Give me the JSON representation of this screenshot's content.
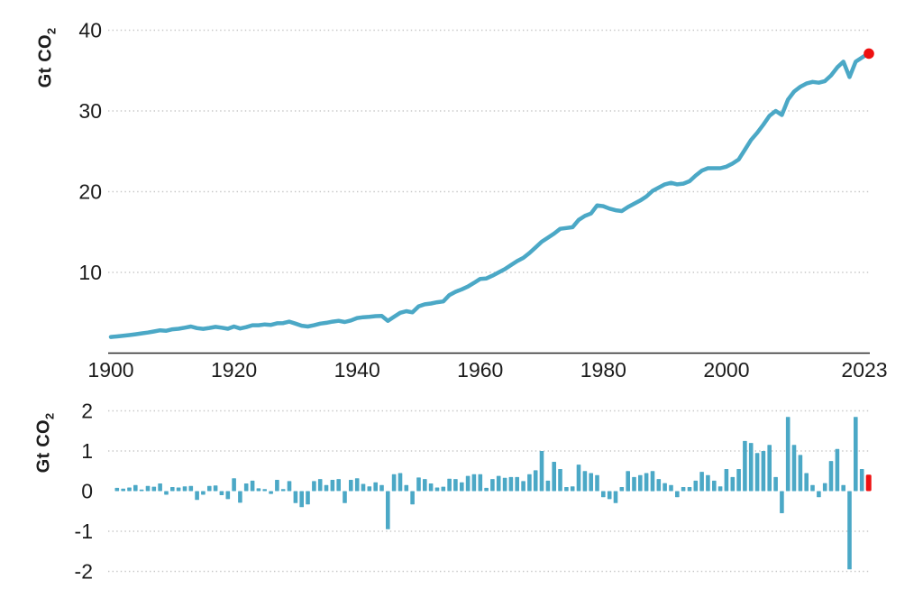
{
  "figure": {
    "background": "#ffffff",
    "unit_label": {
      "text": "Gt CO",
      "sub": "2"
    }
  },
  "colors": {
    "series": "#4ba8c6",
    "highlight": "#ee1111",
    "grid": "#c7c7c7",
    "axis": "#2a2a2a",
    "text": "#1c1c1c"
  },
  "chart_data": [
    {
      "name": "annual-co2-emissions",
      "type": "line",
      "ylabel": "Gt CO2",
      "x_range": [
        1900,
        2023
      ],
      "x_step": 1,
      "ylim": [
        0,
        42
      ],
      "yticks": [
        10,
        20,
        30,
        40
      ],
      "xticks": [
        1900,
        1920,
        1940,
        1960,
        1980,
        2000,
        2023
      ],
      "grid": "horizontal-dotted",
      "legend": "none",
      "highlight_last_point": true,
      "values": [
        2.0,
        2.07,
        2.14,
        2.23,
        2.33,
        2.45,
        2.55,
        2.68,
        2.83,
        2.77,
        2.95,
        3.02,
        3.15,
        3.3,
        3.1,
        3.0,
        3.12,
        3.25,
        3.15,
        3.02,
        3.3,
        3.05,
        3.22,
        3.45,
        3.45,
        3.55,
        3.5,
        3.7,
        3.72,
        3.9,
        3.65,
        3.4,
        3.3,
        3.45,
        3.65,
        3.75,
        3.9,
        4.0,
        3.85,
        4.05,
        4.35,
        4.45,
        4.5,
        4.58,
        4.6,
        4.0,
        4.5,
        5.0,
        5.2,
        5.05,
        5.8,
        6.05,
        6.15,
        6.3,
        6.4,
        7.2,
        7.6,
        7.9,
        8.25,
        8.7,
        9.2,
        9.25,
        9.6,
        10.0,
        10.4,
        10.9,
        11.4,
        11.8,
        12.4,
        13.1,
        13.8,
        14.3,
        14.8,
        15.4,
        15.5,
        15.6,
        16.5,
        17.0,
        17.3,
        18.3,
        18.2,
        17.9,
        17.7,
        17.6,
        18.1,
        18.5,
        18.9,
        19.4,
        20.1,
        20.5,
        20.9,
        21.1,
        20.9,
        21.0,
        21.3,
        22.0,
        22.6,
        22.9,
        22.9,
        22.9,
        23.1,
        23.5,
        24.0,
        25.2,
        26.4,
        27.3,
        28.3,
        29.4,
        30.0,
        29.5,
        31.4,
        32.4,
        33.0,
        33.4,
        33.6,
        33.5,
        33.7,
        34.4,
        35.4,
        36.1,
        34.2,
        36.1,
        36.6,
        37.1
      ]
    },
    {
      "name": "annual-change-in-co2-emissions",
      "type": "bar",
      "ylabel": "Gt CO2",
      "x_range": [
        1901,
        2023
      ],
      "x_step": 1,
      "ylim": [
        -2.45,
        2.45
      ],
      "yticks": [
        -2,
        -1,
        0,
        1,
        2
      ],
      "grid": "horizontal-dotted-except-zero",
      "legend": "none",
      "highlight_last_bar": true,
      "values": [
        0.08,
        0.06,
        0.09,
        0.15,
        0.04,
        0.13,
        0.11,
        0.19,
        -0.09,
        0.1,
        0.09,
        0.12,
        0.13,
        -0.22,
        -0.09,
        0.13,
        0.14,
        -0.1,
        -0.2,
        0.32,
        -0.29,
        0.19,
        0.26,
        0.07,
        0.05,
        -0.07,
        0.28,
        0.05,
        0.25,
        -0.3,
        -0.4,
        -0.33,
        0.25,
        0.3,
        0.15,
        0.28,
        0.3,
        -0.3,
        0.28,
        0.32,
        0.18,
        0.12,
        0.22,
        0.15,
        -0.95,
        0.42,
        0.45,
        0.15,
        -0.33,
        0.34,
        0.3,
        0.19,
        0.09,
        0.11,
        0.31,
        0.3,
        0.22,
        0.38,
        0.42,
        0.42,
        0.08,
        0.3,
        0.38,
        0.33,
        0.35,
        0.35,
        0.25,
        0.42,
        0.52,
        1.0,
        0.26,
        0.73,
        0.55,
        0.1,
        0.12,
        0.66,
        0.5,
        0.45,
        0.4,
        -0.15,
        -0.2,
        -0.3,
        0.1,
        0.5,
        0.35,
        0.4,
        0.45,
        0.5,
        0.3,
        0.2,
        0.15,
        -0.15,
        0.1,
        0.1,
        0.26,
        0.48,
        0.4,
        0.26,
        0.12,
        0.55,
        0.35,
        0.55,
        1.25,
        1.2,
        0.95,
        1.0,
        1.15,
        0.35,
        -0.55,
        1.85,
        1.15,
        0.9,
        0.45,
        0.15,
        -0.15,
        0.2,
        0.75,
        1.05,
        0.15,
        -1.95,
        1.85,
        0.55,
        0.41
      ]
    }
  ]
}
